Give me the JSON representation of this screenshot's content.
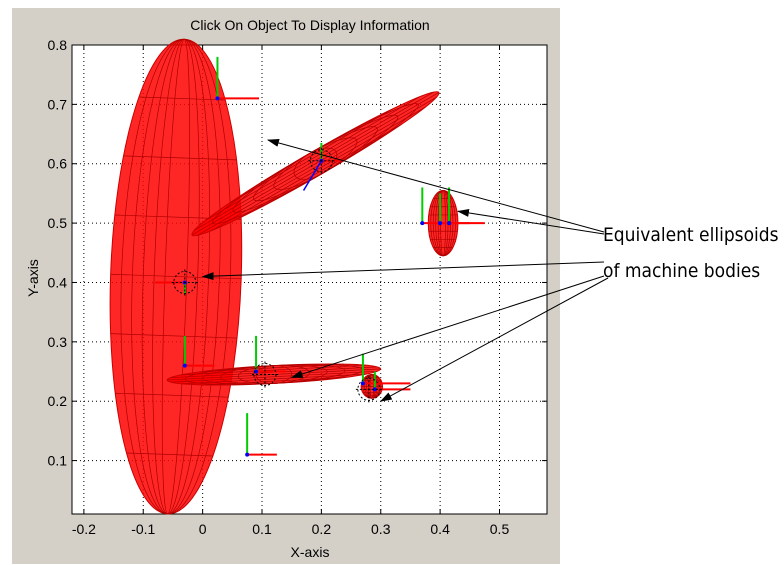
{
  "chart_data": {
    "type": "scatter",
    "title": "Click On Object To Display Information",
    "xlabel": "X-axis",
    "ylabel": "Y-axis",
    "xlim": [
      -0.22,
      0.58
    ],
    "ylim": [
      0.01,
      0.8
    ],
    "xticks": [
      -0.2,
      -0.1,
      0,
      0.1,
      0.2,
      0.3,
      0.4,
      0.5
    ],
    "xtick_labels": [
      "-0.2",
      "-0.1",
      "0",
      "0.1",
      "0.2",
      "0.3",
      "0.4",
      "0.5"
    ],
    "yticks": [
      0.1,
      0.2,
      0.3,
      0.4,
      0.5,
      0.6,
      0.7,
      0.8
    ],
    "ytick_labels": [
      "0.1",
      "0.2",
      "0.3",
      "0.4",
      "0.5",
      "0.6",
      "0.7",
      "0.8"
    ],
    "grid": true,
    "body_color": "#ff0000",
    "frame_x_color": "#ff0000",
    "frame_y_color": "#00cc00",
    "frame_z_color": "#0000ff",
    "ellipsoids": [
      {
        "cx": -0.045,
        "cy": 0.41,
        "rx": 0.11,
        "ry": 0.4,
        "rot": 2
      },
      {
        "cx": 0.19,
        "cy": 0.6,
        "rx": 0.24,
        "ry": 0.02,
        "rot": -30
      },
      {
        "cx": 0.405,
        "cy": 0.5,
        "rx": 0.025,
        "ry": 0.055,
        "rot": 0
      },
      {
        "cx": 0.12,
        "cy": 0.245,
        "rx": 0.18,
        "ry": 0.015,
        "rot": -3
      },
      {
        "cx": 0.285,
        "cy": 0.225,
        "rx": 0.018,
        "ry": 0.02,
        "rot": 0
      }
    ],
    "joint_markers": [
      {
        "x": 0.2,
        "y": 0.605
      },
      {
        "x": -0.03,
        "y": 0.4
      },
      {
        "x": 0.105,
        "y": 0.245
      },
      {
        "x": 0.28,
        "y": 0.22
      }
    ],
    "frames": [
      {
        "x": 0.025,
        "y": 0.71,
        "dx": 0.07,
        "dy": 0.07
      },
      {
        "x": 0.37,
        "y": 0.5,
        "dx": 0.05,
        "dy": 0.06
      },
      {
        "x": 0.4,
        "y": 0.5,
        "dx": 0.05,
        "dy": 0.05
      },
      {
        "x": 0.415,
        "y": 0.5,
        "dx": 0.06,
        "dy": 0.06
      },
      {
        "x": 0.2,
        "y": 0.605,
        "dx": 0.03,
        "dy": 0.03
      },
      {
        "x": -0.03,
        "y": 0.4,
        "dx": -0.05,
        "dy": -0.02
      },
      {
        "x": -0.03,
        "y": 0.26,
        "dx": 0.05,
        "dy": 0.05
      },
      {
        "x": 0.09,
        "y": 0.25,
        "dx": 0.05,
        "dy": 0.06
      },
      {
        "x": 0.27,
        "y": 0.23,
        "dx": 0.08,
        "dy": 0.05
      },
      {
        "x": 0.29,
        "y": 0.22,
        "dx": 0.06,
        "dy": 0.03
      },
      {
        "x": 0.075,
        "y": 0.11,
        "dx": 0.05,
        "dy": 0.07
      }
    ],
    "frame_z_tails": [
      {
        "x": 0.2,
        "y": 0.605,
        "dx": -0.03,
        "dy": -0.05
      },
      {
        "x": 0.37,
        "y": 0.5,
        "dx": 0.0,
        "dy": 0.0
      }
    ],
    "annotation": {
      "text_lines": [
        "Equivalent ellipsoids",
        "of machine bodies"
      ],
      "arrow_targets": [
        {
          "x": 0.11,
          "y": 0.64
        },
        {
          "x": 0.43,
          "y": 0.52
        },
        {
          "x": 0.0,
          "y": 0.41
        },
        {
          "x": 0.15,
          "y": 0.24
        },
        {
          "x": 0.3,
          "y": 0.2
        }
      ]
    }
  }
}
